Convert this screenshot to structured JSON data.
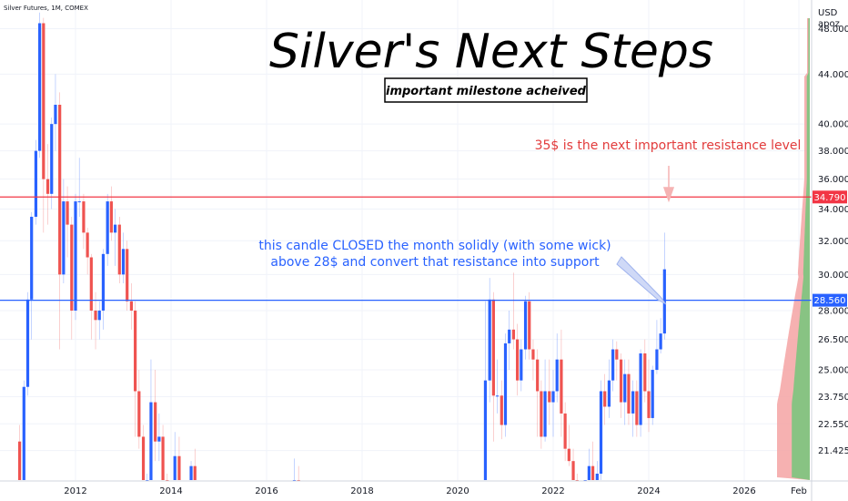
{
  "header": {
    "symbol": "Silver Futures, 1M, COMEX",
    "currency": "USD",
    "unit": "apoz"
  },
  "chart_data": {
    "type": "candlestick",
    "title": "Silver's Next Steps",
    "subtitle": "important milestone acheived",
    "x_ticks": [
      "2012",
      "2014",
      "2016",
      "2018",
      "2020",
      "2022",
      "2024",
      "2026",
      "Feb"
    ],
    "y_ticks": [
      "48.000",
      "44.000",
      "40.000",
      "38.000",
      "36.000",
      "34.000",
      "32.000",
      "30.000",
      "28.000",
      "26.500",
      "25.000",
      "23.750",
      "22.550",
      "21.425"
    ],
    "ylim": [
      20.5,
      50.0
    ],
    "scale": "log",
    "levels": [
      {
        "name": "resistance",
        "value": 34.79,
        "label": "34.790",
        "color": "#f23645"
      },
      {
        "name": "support",
        "value": 28.56,
        "label": "28.560",
        "color": "#2962ff"
      }
    ],
    "annotations": {
      "red": "35$ is the next important resistance level",
      "blue_line1": "this candle CLOSED the month solidly (with some wick)",
      "blue_line2": "above 28$ and convert that resistance into support"
    },
    "candles_2010_2014": [
      {
        "t": 2010.83,
        "o": 21.8,
        "h": 22.5,
        "l": 19.0,
        "c": 20.2
      },
      {
        "t": 2010.92,
        "o": 20.2,
        "h": 24.5,
        "l": 20.0,
        "c": 24.2
      },
      {
        "t": 2011.0,
        "o": 24.2,
        "h": 29.0,
        "l": 23.8,
        "c": 28.6
      },
      {
        "t": 2011.08,
        "o": 28.6,
        "h": 33.8,
        "l": 26.5,
        "c": 33.5
      },
      {
        "t": 2011.17,
        "o": 33.5,
        "h": 38.8,
        "l": 33.0,
        "c": 38.0
      },
      {
        "t": 2011.25,
        "o": 38.0,
        "h": 49.5,
        "l": 37.5,
        "c": 48.5
      },
      {
        "t": 2011.33,
        "o": 48.5,
        "h": 49.0,
        "l": 32.5,
        "c": 36.0
      },
      {
        "t": 2011.42,
        "o": 36.0,
        "h": 38.5,
        "l": 33.0,
        "c": 35.0
      },
      {
        "t": 2011.5,
        "o": 35.0,
        "h": 40.5,
        "l": 34.0,
        "c": 40.0
      },
      {
        "t": 2011.58,
        "o": 40.0,
        "h": 44.0,
        "l": 38.0,
        "c": 41.5
      },
      {
        "t": 2011.67,
        "o": 41.5,
        "h": 42.5,
        "l": 26.0,
        "c": 30.0
      },
      {
        "t": 2011.75,
        "o": 30.0,
        "h": 36.0,
        "l": 29.5,
        "c": 34.5
      },
      {
        "t": 2011.83,
        "o": 34.5,
        "h": 35.5,
        "l": 31.0,
        "c": 33.0
      },
      {
        "t": 2011.92,
        "o": 33.0,
        "h": 33.5,
        "l": 26.5,
        "c": 28.0
      },
      {
        "t": 2012.0,
        "o": 28.0,
        "h": 35.0,
        "l": 27.5,
        "c": 34.5
      },
      {
        "t": 2012.08,
        "o": 34.5,
        "h": 37.5,
        "l": 33.5,
        "c": 34.5
      },
      {
        "t": 2012.17,
        "o": 34.5,
        "h": 35.0,
        "l": 31.5,
        "c": 32.5
      },
      {
        "t": 2012.25,
        "o": 32.5,
        "h": 32.8,
        "l": 30.0,
        "c": 31.0
      },
      {
        "t": 2012.33,
        "o": 31.0,
        "h": 31.2,
        "l": 26.5,
        "c": 28.0
      },
      {
        "t": 2012.42,
        "o": 28.0,
        "h": 29.0,
        "l": 26.0,
        "c": 27.5
      },
      {
        "t": 2012.5,
        "o": 27.5,
        "h": 28.5,
        "l": 26.5,
        "c": 28.0
      },
      {
        "t": 2012.58,
        "o": 28.0,
        "h": 31.5,
        "l": 27.0,
        "c": 31.2
      },
      {
        "t": 2012.67,
        "o": 31.2,
        "h": 35.0,
        "l": 30.5,
        "c": 34.5
      },
      {
        "t": 2012.75,
        "o": 34.5,
        "h": 35.5,
        "l": 32.0,
        "c": 32.5
      },
      {
        "t": 2012.83,
        "o": 32.5,
        "h": 34.0,
        "l": 30.5,
        "c": 33.0
      },
      {
        "t": 2012.92,
        "o": 33.0,
        "h": 33.5,
        "l": 29.5,
        "c": 30.0
      },
      {
        "t": 2013.0,
        "o": 30.0,
        "h": 32.5,
        "l": 29.5,
        "c": 31.5
      },
      {
        "t": 2013.08,
        "o": 31.5,
        "h": 32.0,
        "l": 28.0,
        "c": 28.5
      },
      {
        "t": 2013.17,
        "o": 28.5,
        "h": 29.5,
        "l": 27.0,
        "c": 28.0
      },
      {
        "t": 2013.25,
        "o": 28.0,
        "h": 28.5,
        "l": 22.0,
        "c": 24.0
      },
      {
        "t": 2013.33,
        "o": 24.0,
        "h": 25.0,
        "l": 21.5,
        "c": 22.0
      },
      {
        "t": 2013.42,
        "o": 22.0,
        "h": 22.5,
        "l": 18.5,
        "c": 19.5
      },
      {
        "t": 2013.5,
        "o": 19.5,
        "h": 20.5,
        "l": 18.0,
        "c": 19.7
      },
      {
        "t": 2013.58,
        "o": 19.7,
        "h": 25.5,
        "l": 19.5,
        "c": 23.5
      },
      {
        "t": 2013.67,
        "o": 23.5,
        "h": 25.0,
        "l": 21.0,
        "c": 21.8
      },
      {
        "t": 2013.75,
        "o": 21.8,
        "h": 23.0,
        "l": 21.0,
        "c": 22.0
      },
      {
        "t": 2013.83,
        "o": 22.0,
        "h": 22.5,
        "l": 20.0,
        "c": 20.2
      },
      {
        "t": 2013.92,
        "o": 20.2,
        "h": 20.5,
        "l": 18.8,
        "c": 19.5
      },
      {
        "t": 2014.08,
        "o": 19.5,
        "h": 22.2,
        "l": 19.2,
        "c": 21.2
      },
      {
        "t": 2014.17,
        "o": 21.2,
        "h": 22.0,
        "l": 19.0,
        "c": 19.8
      },
      {
        "t": 2014.42,
        "o": 19.5,
        "h": 21.0,
        "l": 18.5,
        "c": 20.8
      },
      {
        "t": 2014.5,
        "o": 20.8,
        "h": 21.5,
        "l": 20.0,
        "c": 20.2
      },
      {
        "t": 2016.58,
        "o": 19.5,
        "h": 21.1,
        "l": 19.0,
        "c": 20.0
      },
      {
        "t": 2016.67,
        "o": 20.0,
        "h": 20.8,
        "l": 18.5,
        "c": 19.2
      }
    ],
    "candles_2020_2024": [
      {
        "t": 2020.58,
        "o": 20.0,
        "h": 28.5,
        "l": 19.5,
        "c": 24.5
      },
      {
        "t": 2020.67,
        "o": 24.5,
        "h": 29.8,
        "l": 23.5,
        "c": 28.6
      },
      {
        "t": 2020.75,
        "o": 28.6,
        "h": 29.0,
        "l": 21.8,
        "c": 23.8
      },
      {
        "t": 2020.83,
        "o": 23.8,
        "h": 25.5,
        "l": 23.0,
        "c": 23.8
      },
      {
        "t": 2020.92,
        "o": 23.8,
        "h": 24.5,
        "l": 21.9,
        "c": 22.5
      },
      {
        "t": 2021.0,
        "o": 22.5,
        "h": 26.8,
        "l": 22.0,
        "c": 26.3
      },
      {
        "t": 2021.08,
        "o": 26.3,
        "h": 28.0,
        "l": 25.0,
        "c": 27.0
      },
      {
        "t": 2021.17,
        "o": 27.0,
        "h": 30.1,
        "l": 26.0,
        "c": 26.5
      },
      {
        "t": 2021.25,
        "o": 26.5,
        "h": 27.3,
        "l": 23.8,
        "c": 24.5
      },
      {
        "t": 2021.33,
        "o": 24.5,
        "h": 26.5,
        "l": 24.0,
        "c": 26.0
      },
      {
        "t": 2021.42,
        "o": 26.0,
        "h": 28.8,
        "l": 25.5,
        "c": 28.5
      },
      {
        "t": 2021.5,
        "o": 28.5,
        "h": 29.0,
        "l": 25.5,
        "c": 26.0
      },
      {
        "t": 2021.58,
        "o": 26.0,
        "h": 26.5,
        "l": 24.5,
        "c": 25.5
      },
      {
        "t": 2021.67,
        "o": 25.5,
        "h": 26.0,
        "l": 22.0,
        "c": 24.0
      },
      {
        "t": 2021.75,
        "o": 24.0,
        "h": 24.5,
        "l": 21.5,
        "c": 22.0
      },
      {
        "t": 2021.83,
        "o": 22.0,
        "h": 25.5,
        "l": 21.8,
        "c": 24.0
      },
      {
        "t": 2021.92,
        "o": 24.0,
        "h": 25.5,
        "l": 22.5,
        "c": 23.5
      },
      {
        "t": 2022.0,
        "o": 23.5,
        "h": 25.0,
        "l": 22.0,
        "c": 24.0
      },
      {
        "t": 2022.08,
        "o": 24.0,
        "h": 26.8,
        "l": 23.5,
        "c": 25.5
      },
      {
        "t": 2022.17,
        "o": 25.5,
        "h": 27.0,
        "l": 22.0,
        "c": 23.0
      },
      {
        "t": 2022.25,
        "o": 23.0,
        "h": 23.5,
        "l": 21.0,
        "c": 21.5
      },
      {
        "t": 2022.33,
        "o": 21.5,
        "h": 22.5,
        "l": 20.8,
        "c": 21.0
      },
      {
        "t": 2022.42,
        "o": 21.0,
        "h": 21.5,
        "l": 19.5,
        "c": 20.2
      },
      {
        "t": 2022.5,
        "o": 20.2,
        "h": 20.5,
        "l": 18.0,
        "c": 19.0
      },
      {
        "t": 2022.67,
        "o": 19.0,
        "h": 20.0,
        "l": 17.5,
        "c": 19.2
      },
      {
        "t": 2022.75,
        "o": 19.2,
        "h": 21.5,
        "l": 18.5,
        "c": 20.8
      },
      {
        "t": 2022.83,
        "o": 20.8,
        "h": 21.8,
        "l": 19.0,
        "c": 19.5
      },
      {
        "t": 2022.92,
        "o": 19.5,
        "h": 21.0,
        "l": 19.0,
        "c": 20.5
      },
      {
        "t": 2023.0,
        "o": 20.5,
        "h": 24.5,
        "l": 20.2,
        "c": 24.0
      },
      {
        "t": 2023.08,
        "o": 24.0,
        "h": 24.8,
        "l": 22.5,
        "c": 23.3
      },
      {
        "t": 2023.17,
        "o": 23.3,
        "h": 25.5,
        "l": 22.8,
        "c": 24.5
      },
      {
        "t": 2023.25,
        "o": 24.5,
        "h": 26.5,
        "l": 24.0,
        "c": 26.0
      },
      {
        "t": 2023.33,
        "o": 26.0,
        "h": 26.4,
        "l": 24.5,
        "c": 25.5
      },
      {
        "t": 2023.42,
        "o": 25.5,
        "h": 25.8,
        "l": 22.8,
        "c": 23.5
      },
      {
        "t": 2023.5,
        "o": 23.5,
        "h": 25.5,
        "l": 22.5,
        "c": 24.8
      },
      {
        "t": 2023.58,
        "o": 24.8,
        "h": 25.5,
        "l": 22.5,
        "c": 23.0
      },
      {
        "t": 2023.67,
        "o": 23.0,
        "h": 24.5,
        "l": 22.0,
        "c": 24.0
      },
      {
        "t": 2023.75,
        "o": 24.0,
        "h": 24.5,
        "l": 22.0,
        "c": 22.5
      },
      {
        "t": 2023.83,
        "o": 22.5,
        "h": 26.0,
        "l": 22.0,
        "c": 25.8
      },
      {
        "t": 2023.92,
        "o": 25.8,
        "h": 26.5,
        "l": 23.5,
        "c": 24.0
      },
      {
        "t": 2024.0,
        "o": 24.0,
        "h": 25.5,
        "l": 22.2,
        "c": 22.8
      },
      {
        "t": 2024.08,
        "o": 22.8,
        "h": 25.2,
        "l": 22.5,
        "c": 25.0
      },
      {
        "t": 2024.17,
        "o": 25.0,
        "h": 27.5,
        "l": 24.8,
        "c": 26.0
      },
      {
        "t": 2024.25,
        "o": 26.0,
        "h": 27.6,
        "l": 25.8,
        "c": 26.8
      },
      {
        "t": 2024.33,
        "o": 26.8,
        "h": 32.5,
        "l": 26.5,
        "c": 30.3
      }
    ],
    "colors": {
      "up": "#2962ff",
      "down": "#ef5350",
      "profile_up": "#7cc57e",
      "profile_down": "#f5a3a3"
    }
  }
}
